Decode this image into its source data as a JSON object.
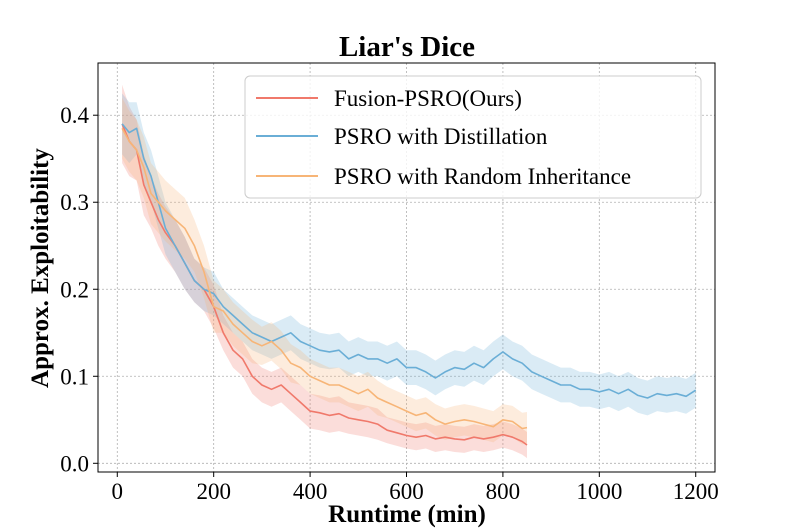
{
  "chart_data": {
    "type": "line",
    "title": "Liar's Dice",
    "xlabel": "Runtime (min)",
    "ylabel": "Approx. Exploitability",
    "xlim": [
      -40,
      1240
    ],
    "ylim": [
      -0.01,
      0.46
    ],
    "xticks": [
      0,
      200,
      400,
      600,
      800,
      1000,
      1200
    ],
    "yticks": [
      0.0,
      0.1,
      0.2,
      0.3,
      0.4
    ],
    "xtick_labels": [
      "0",
      "200",
      "400",
      "600",
      "800",
      "1000",
      "1200"
    ],
    "ytick_labels": [
      "0.0",
      "0.1",
      "0.2",
      "0.3",
      "0.4"
    ],
    "grid": true,
    "legend_position": "top-right",
    "series": [
      {
        "name": "Fusion-PSRO(Ours)",
        "color": "#f0796b",
        "x": [
          10,
          25,
          40,
          55,
          70,
          85,
          100,
          120,
          140,
          160,
          180,
          200,
          220,
          240,
          260,
          280,
          300,
          320,
          340,
          360,
          380,
          400,
          420,
          440,
          460,
          480,
          500,
          520,
          540,
          560,
          580,
          600,
          620,
          640,
          660,
          680,
          700,
          720,
          740,
          760,
          780,
          800,
          820,
          840,
          850
        ],
        "y": [
          0.39,
          0.37,
          0.36,
          0.32,
          0.3,
          0.28,
          0.265,
          0.25,
          0.23,
          0.21,
          0.2,
          0.18,
          0.15,
          0.13,
          0.12,
          0.1,
          0.09,
          0.085,
          0.09,
          0.08,
          0.07,
          0.06,
          0.058,
          0.055,
          0.057,
          0.052,
          0.05,
          0.048,
          0.045,
          0.038,
          0.035,
          0.032,
          0.03,
          0.032,
          0.028,
          0.03,
          0.028,
          0.027,
          0.03,
          0.028,
          0.03,
          0.033,
          0.03,
          0.025,
          0.021
        ],
        "band": [
          0.045,
          0.04,
          0.035,
          0.035,
          0.03,
          0.03,
          0.03,
          0.03,
          0.03,
          0.025,
          0.025,
          0.025,
          0.02,
          0.02,
          0.02,
          0.02,
          0.02,
          0.02,
          0.02,
          0.02,
          0.02,
          0.02,
          0.02,
          0.02,
          0.02,
          0.018,
          0.018,
          0.018,
          0.018,
          0.015,
          0.015,
          0.015,
          0.015,
          0.015,
          0.015,
          0.015,
          0.015,
          0.015,
          0.015,
          0.015,
          0.015,
          0.015,
          0.015,
          0.015,
          0.015
        ]
      },
      {
        "name": "PSRO with Distillation",
        "color": "#6aaed6",
        "x": [
          10,
          25,
          40,
          55,
          70,
          85,
          100,
          120,
          140,
          160,
          180,
          200,
          220,
          240,
          260,
          280,
          300,
          320,
          340,
          360,
          380,
          400,
          420,
          440,
          460,
          480,
          500,
          520,
          540,
          560,
          580,
          600,
          620,
          640,
          660,
          680,
          700,
          720,
          740,
          760,
          780,
          800,
          820,
          840,
          860,
          880,
          900,
          920,
          940,
          960,
          980,
          1000,
          1020,
          1040,
          1060,
          1080,
          1100,
          1120,
          1140,
          1160,
          1180,
          1200
        ],
        "y": [
          0.39,
          0.38,
          0.385,
          0.35,
          0.33,
          0.3,
          0.27,
          0.25,
          0.23,
          0.21,
          0.2,
          0.195,
          0.18,
          0.17,
          0.16,
          0.15,
          0.145,
          0.14,
          0.145,
          0.15,
          0.14,
          0.135,
          0.13,
          0.128,
          0.13,
          0.12,
          0.125,
          0.12,
          0.12,
          0.115,
          0.12,
          0.11,
          0.11,
          0.105,
          0.098,
          0.105,
          0.11,
          0.108,
          0.115,
          0.11,
          0.12,
          0.128,
          0.12,
          0.115,
          0.105,
          0.1,
          0.095,
          0.09,
          0.09,
          0.085,
          0.085,
          0.082,
          0.085,
          0.08,
          0.085,
          0.078,
          0.075,
          0.08,
          0.078,
          0.08,
          0.077,
          0.084
        ],
        "band": [
          0.035,
          0.035,
          0.03,
          0.03,
          0.03,
          0.03,
          0.03,
          0.03,
          0.03,
          0.025,
          0.025,
          0.025,
          0.02,
          0.02,
          0.02,
          0.02,
          0.02,
          0.02,
          0.02,
          0.02,
          0.02,
          0.02,
          0.02,
          0.02,
          0.02,
          0.02,
          0.02,
          0.02,
          0.02,
          0.02,
          0.02,
          0.02,
          0.02,
          0.02,
          0.02,
          0.02,
          0.02,
          0.02,
          0.02,
          0.02,
          0.02,
          0.02,
          0.02,
          0.02,
          0.02,
          0.02,
          0.02,
          0.02,
          0.02,
          0.02,
          0.02,
          0.02,
          0.02,
          0.02,
          0.02,
          0.02,
          0.02,
          0.02,
          0.02,
          0.02,
          0.02,
          0.02
        ]
      },
      {
        "name": "PSRO with Random Inheritance",
        "color": "#f7b577",
        "x": [
          10,
          25,
          40,
          55,
          70,
          85,
          100,
          120,
          140,
          160,
          180,
          200,
          220,
          240,
          260,
          280,
          300,
          320,
          340,
          360,
          380,
          400,
          420,
          440,
          460,
          480,
          500,
          520,
          540,
          560,
          580,
          600,
          620,
          640,
          660,
          680,
          700,
          720,
          740,
          760,
          780,
          800,
          820,
          840,
          850
        ],
        "y": [
          0.385,
          0.37,
          0.36,
          0.34,
          0.31,
          0.3,
          0.29,
          0.28,
          0.27,
          0.25,
          0.22,
          0.18,
          0.175,
          0.16,
          0.15,
          0.14,
          0.135,
          0.14,
          0.13,
          0.115,
          0.11,
          0.1,
          0.095,
          0.09,
          0.09,
          0.085,
          0.08,
          0.085,
          0.075,
          0.07,
          0.065,
          0.06,
          0.055,
          0.058,
          0.05,
          0.045,
          0.048,
          0.05,
          0.048,
          0.045,
          0.042,
          0.05,
          0.048,
          0.04,
          0.041
        ],
        "band": [
          0.035,
          0.035,
          0.035,
          0.035,
          0.035,
          0.035,
          0.035,
          0.035,
          0.035,
          0.03,
          0.03,
          0.03,
          0.025,
          0.025,
          0.025,
          0.025,
          0.022,
          0.022,
          0.022,
          0.022,
          0.02,
          0.02,
          0.02,
          0.02,
          0.02,
          0.02,
          0.02,
          0.02,
          0.02,
          0.018,
          0.018,
          0.018,
          0.018,
          0.018,
          0.018,
          0.018,
          0.018,
          0.018,
          0.018,
          0.018,
          0.018,
          0.018,
          0.018,
          0.018,
          0.018
        ]
      }
    ]
  }
}
